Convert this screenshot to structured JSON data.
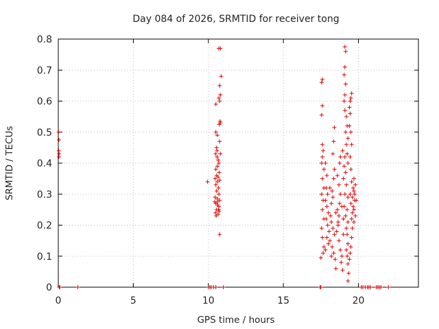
{
  "chart_data": {
    "type": "scatter",
    "title": "Day 084 of 2026, SRMTID for receiver tong",
    "xlabel": "GPS time / hours",
    "ylabel": "SRMTID / TECUs",
    "xlim": [
      0,
      24
    ],
    "ylim": [
      0,
      0.8
    ],
    "xticks": [
      0,
      5,
      10,
      15,
      20
    ],
    "yticks": [
      0,
      0.1,
      0.2,
      0.3,
      0.4,
      0.5,
      0.6,
      0.7,
      0.8
    ],
    "xtick_labels": [
      "0",
      "5",
      "10",
      "15",
      "20"
    ],
    "ytick_labels": [
      "0",
      "0.1",
      "0.2",
      "0.3",
      "0.4",
      "0.5",
      "0.6",
      "0.7",
      "0.8"
    ],
    "grid": true,
    "marker": "+",
    "color": "#dd0000",
    "series": [
      {
        "name": "SRMTID",
        "points": [
          [
            0.02,
            0.5
          ],
          [
            0.04,
            0.475
          ],
          [
            0.03,
            0.44
          ],
          [
            0.05,
            0.43
          ],
          [
            0.04,
            0.42
          ],
          [
            0.06,
            0.0
          ],
          [
            0.1,
            0.0
          ],
          [
            1.3,
            0.0
          ],
          [
            10.0,
            0.0
          ],
          [
            10.1,
            0.0
          ],
          [
            10.2,
            0.0
          ],
          [
            10.35,
            0.0
          ],
          [
            10.5,
            0.0
          ],
          [
            11.0,
            0.0
          ],
          [
            9.95,
            0.34
          ],
          [
            10.7,
            0.77
          ],
          [
            10.8,
            0.77
          ],
          [
            10.85,
            0.68
          ],
          [
            10.75,
            0.65
          ],
          [
            10.8,
            0.62
          ],
          [
            10.7,
            0.61
          ],
          [
            10.75,
            0.6
          ],
          [
            10.5,
            0.59
          ],
          [
            10.78,
            0.535
          ],
          [
            10.72,
            0.525
          ],
          [
            10.5,
            0.5
          ],
          [
            10.6,
            0.49
          ],
          [
            10.55,
            0.45
          ],
          [
            10.75,
            0.47
          ],
          [
            10.8,
            0.43
          ],
          [
            10.48,
            0.43
          ],
          [
            10.58,
            0.42
          ],
          [
            10.66,
            0.41
          ],
          [
            10.7,
            0.4
          ],
          [
            10.6,
            0.39
          ],
          [
            10.5,
            0.38
          ],
          [
            10.72,
            0.37
          ],
          [
            10.55,
            0.36
          ],
          [
            10.65,
            0.355
          ],
          [
            10.45,
            0.35
          ],
          [
            10.6,
            0.34
          ],
          [
            10.75,
            0.345
          ],
          [
            10.5,
            0.33
          ],
          [
            10.68,
            0.32
          ],
          [
            10.55,
            0.31
          ],
          [
            10.7,
            0.3
          ],
          [
            10.45,
            0.29
          ],
          [
            10.6,
            0.285
          ],
          [
            10.75,
            0.28
          ],
          [
            10.5,
            0.27
          ],
          [
            10.62,
            0.265
          ],
          [
            10.7,
            0.26
          ],
          [
            10.55,
            0.25
          ],
          [
            10.48,
            0.24
          ],
          [
            10.65,
            0.235
          ],
          [
            10.52,
            0.23
          ],
          [
            10.72,
            0.245
          ],
          [
            10.6,
            0.275
          ],
          [
            10.42,
            0.275
          ],
          [
            10.75,
            0.17
          ],
          [
            10.8,
            0.53
          ],
          [
            10.58,
            0.44
          ],
          [
            10.68,
            0.25
          ],
          [
            17.45,
            0.0
          ],
          [
            17.5,
            0.0
          ],
          [
            20.2,
            0.0
          ],
          [
            20.3,
            0.0
          ],
          [
            20.45,
            0.0
          ],
          [
            20.6,
            0.0
          ],
          [
            20.7,
            0.0
          ],
          [
            20.8,
            0.0
          ],
          [
            21.2,
            0.0
          ],
          [
            21.3,
            0.0
          ],
          [
            21.4,
            0.0
          ],
          [
            21.5,
            0.0
          ],
          [
            22.0,
            0.0
          ],
          [
            17.6,
            0.67
          ],
          [
            17.55,
            0.66
          ],
          [
            17.6,
            0.585
          ],
          [
            17.55,
            0.555
          ],
          [
            17.6,
            0.46
          ],
          [
            17.65,
            0.44
          ],
          [
            17.6,
            0.42
          ],
          [
            17.55,
            0.4
          ],
          [
            17.7,
            0.38
          ],
          [
            17.6,
            0.35
          ],
          [
            17.7,
            0.32
          ],
          [
            17.55,
            0.3
          ],
          [
            17.65,
            0.28
          ],
          [
            17.6,
            0.25
          ],
          [
            17.7,
            0.22
          ],
          [
            17.55,
            0.19
          ],
          [
            17.6,
            0.16
          ],
          [
            17.7,
            0.13
          ],
          [
            17.5,
            0.095
          ],
          [
            17.65,
            0.11
          ],
          [
            17.8,
            0.4
          ],
          [
            17.9,
            0.36
          ],
          [
            17.85,
            0.32
          ],
          [
            17.95,
            0.3
          ],
          [
            17.8,
            0.28
          ],
          [
            17.9,
            0.26
          ],
          [
            18.0,
            0.24
          ],
          [
            17.85,
            0.22
          ],
          [
            17.95,
            0.2
          ],
          [
            18.05,
            0.18
          ],
          [
            17.9,
            0.16
          ],
          [
            18.0,
            0.14
          ],
          [
            17.8,
            0.12
          ],
          [
            18.1,
            0.15
          ],
          [
            18.2,
            0.27
          ],
          [
            18.3,
            0.29
          ],
          [
            18.25,
            0.31
          ],
          [
            18.35,
            0.35
          ],
          [
            18.4,
            0.38
          ],
          [
            18.3,
            0.43
          ],
          [
            18.35,
            0.47
          ],
          [
            18.4,
            0.515
          ],
          [
            18.2,
            0.21
          ],
          [
            18.3,
            0.19
          ],
          [
            18.4,
            0.17
          ],
          [
            18.25,
            0.13
          ],
          [
            18.35,
            0.11
          ],
          [
            18.45,
            0.09
          ],
          [
            18.5,
            0.06
          ],
          [
            18.6,
            0.25
          ],
          [
            18.7,
            0.23
          ],
          [
            18.65,
            0.21
          ],
          [
            18.75,
            0.27
          ],
          [
            18.8,
            0.3
          ],
          [
            18.7,
            0.33
          ],
          [
            18.6,
            0.36
          ],
          [
            18.75,
            0.4
          ],
          [
            18.8,
            0.42
          ],
          [
            18.65,
            0.2
          ],
          [
            18.55,
            0.18
          ],
          [
            18.7,
            0.15
          ],
          [
            18.8,
            0.12
          ],
          [
            18.9,
            0.1
          ],
          [
            18.95,
            0.055
          ],
          [
            18.85,
            0.08
          ],
          [
            19.0,
            0.22
          ],
          [
            19.05,
            0.26
          ],
          [
            19.1,
            0.3
          ],
          [
            19.0,
            0.35
          ],
          [
            19.05,
            0.39
          ],
          [
            19.1,
            0.42
          ],
          [
            18.95,
            0.44
          ],
          [
            19.15,
            0.5
          ],
          [
            19.1,
            0.57
          ],
          [
            19.05,
            0.6
          ],
          [
            19.1,
            0.62
          ],
          [
            19.15,
            0.655
          ],
          [
            19.05,
            0.685
          ],
          [
            19.1,
            0.71
          ],
          [
            19.15,
            0.76
          ],
          [
            19.1,
            0.775
          ],
          [
            19.2,
            0.55
          ],
          [
            19.25,
            0.52
          ],
          [
            19.3,
            0.48
          ],
          [
            19.2,
            0.46
          ],
          [
            19.25,
            0.43
          ],
          [
            19.3,
            0.4
          ],
          [
            19.15,
            0.37
          ],
          [
            19.2,
            0.33
          ],
          [
            19.3,
            0.29
          ],
          [
            19.25,
            0.25
          ],
          [
            19.15,
            0.23
          ],
          [
            19.3,
            0.21
          ],
          [
            19.2,
            0.19
          ],
          [
            19.25,
            0.17
          ],
          [
            19.3,
            0.14
          ],
          [
            19.2,
            0.12
          ],
          [
            19.25,
            0.1
          ],
          [
            19.3,
            0.075
          ],
          [
            19.35,
            0.045
          ],
          [
            19.3,
            0.02
          ],
          [
            19.4,
            0.58
          ],
          [
            19.45,
            0.6
          ],
          [
            19.5,
            0.61
          ],
          [
            19.55,
            0.625
          ],
          [
            19.45,
            0.56
          ],
          [
            19.4,
            0.52
          ],
          [
            19.5,
            0.5
          ],
          [
            19.55,
            0.46
          ],
          [
            19.45,
            0.42
          ],
          [
            19.5,
            0.38
          ],
          [
            19.55,
            0.34
          ],
          [
            19.45,
            0.3
          ],
          [
            19.5,
            0.27
          ],
          [
            19.6,
            0.24
          ],
          [
            19.55,
            0.22
          ],
          [
            19.7,
            0.21
          ],
          [
            19.65,
            0.26
          ],
          [
            19.75,
            0.28
          ],
          [
            19.7,
            0.31
          ],
          [
            19.8,
            0.33
          ],
          [
            19.75,
            0.3
          ],
          [
            19.85,
            0.28
          ],
          [
            19.7,
            0.25
          ],
          [
            19.8,
            0.23
          ],
          [
            19.6,
            0.29
          ],
          [
            19.65,
            0.32
          ],
          [
            19.7,
            0.35
          ],
          [
            19.6,
            0.19
          ],
          [
            19.55,
            0.16
          ],
          [
            19.5,
            0.13
          ],
          [
            19.45,
            0.11
          ],
          [
            19.4,
            0.09
          ],
          [
            18.15,
            0.23
          ],
          [
            18.5,
            0.24
          ],
          [
            18.9,
            0.26
          ],
          [
            19.0,
            0.17
          ],
          [
            18.1,
            0.32
          ],
          [
            18.2,
            0.1
          ]
        ]
      }
    ]
  }
}
